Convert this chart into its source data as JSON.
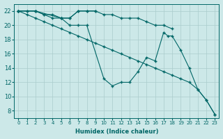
{
  "xlabel": "Humidex (Indice chaleur)",
  "bg_color": "#cce8e8",
  "grid_color": "#aacccc",
  "line_color": "#006666",
  "xlim": [
    -0.5,
    23.5
  ],
  "ylim": [
    7,
    23
  ],
  "xticks": [
    0,
    1,
    2,
    3,
    4,
    5,
    6,
    7,
    8,
    9,
    10,
    11,
    12,
    13,
    14,
    15,
    16,
    17,
    18,
    19,
    20,
    21,
    22,
    23
  ],
  "yticks": [
    8,
    10,
    12,
    14,
    16,
    18,
    20,
    22
  ],
  "lines": [
    {
      "x": [
        0,
        1,
        2,
        3,
        4,
        5,
        6,
        7,
        8,
        9
      ],
      "y": [
        22,
        22,
        22,
        21.5,
        21.5,
        21,
        21,
        22,
        22,
        22
      ]
    },
    {
      "x": [
        0,
        1,
        2,
        3,
        4,
        5,
        6,
        7,
        8,
        9,
        10,
        11,
        12,
        13,
        14,
        15,
        16,
        17,
        18
      ],
      "y": [
        22,
        22,
        22,
        21.5,
        21,
        21,
        21,
        22,
        22,
        22,
        21.5,
        21.5,
        21,
        21,
        21,
        20.5,
        20,
        20,
        19.5
      ]
    },
    {
      "x": [
        0,
        2,
        5,
        6,
        7,
        8,
        10,
        11,
        12,
        13,
        14,
        15,
        16,
        17,
        17.5,
        18,
        19,
        20,
        21,
        22,
        23
      ],
      "y": [
        22,
        22,
        21,
        20,
        20,
        20,
        12.5,
        11.5,
        12,
        12,
        13.5,
        15.5,
        15,
        19,
        18.5,
        18.5,
        16.5,
        14,
        11,
        9.5,
        7.5
      ]
    },
    {
      "x": [
        0,
        1,
        2,
        3,
        4,
        5,
        6,
        7,
        8,
        9,
        10,
        11,
        12,
        13,
        14,
        15,
        16,
        17,
        18,
        19,
        20,
        21,
        22,
        23
      ],
      "y": [
        22,
        21.5,
        21,
        20.5,
        20,
        19.5,
        19,
        18.5,
        18,
        17.5,
        17,
        16.5,
        16,
        15.5,
        15,
        14.5,
        14,
        13.5,
        13,
        12.5,
        12,
        11,
        9.5,
        7.5
      ]
    }
  ]
}
